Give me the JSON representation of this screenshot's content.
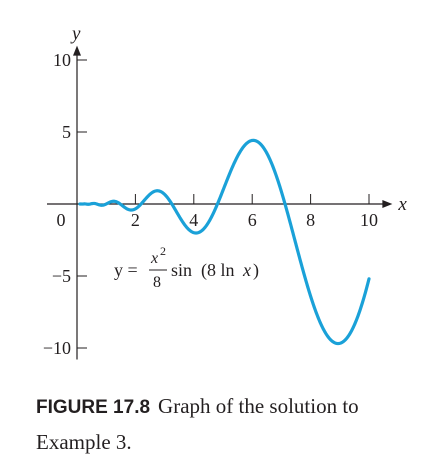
{
  "chart_data": {
    "type": "line",
    "title": "",
    "xlabel": "x",
    "ylabel": "y",
    "xlim": [
      0,
      10.8
    ],
    "ylim": [
      -10.8,
      11
    ],
    "xticks": [
      0,
      2,
      4,
      6,
      8,
      10
    ],
    "xtick_labels": [
      "0",
      "2",
      "4",
      "6",
      "8",
      "10"
    ],
    "yticks": [
      10,
      5,
      -5,
      -10
    ],
    "ytick_labels": [
      "10",
      "5",
      "−5",
      "−10"
    ],
    "grid": false,
    "series": [
      {
        "function": "x^2/8 * sin(8 ln x)",
        "x_start": 0.1,
        "x_end": 10,
        "color": "#1aa1d8",
        "x": [
          1,
          1.3,
          2,
          2.5,
          3.3,
          4.1,
          5,
          5.9,
          6.5,
          7.2,
          8.3,
          9.2,
          10
        ],
        "y": [
          0,
          0.2,
          -0.4,
          0.8,
          -0.8,
          -1.8,
          1.8,
          4.4,
          3.8,
          0.5,
          -6.5,
          -9.8,
          -5.1
        ]
      }
    ],
    "annotation": {
      "lhs": "y =",
      "numerator": "x",
      "exponent": "2",
      "denominator": "8",
      "rhs_func": "sin",
      "rhs_arg_a": "(8 ln",
      "rhs_arg_var": "x",
      "rhs_arg_b": ")"
    }
  },
  "caption": {
    "label": "FIGURE 17.8",
    "text": "Graph of the solution to Example 3."
  }
}
